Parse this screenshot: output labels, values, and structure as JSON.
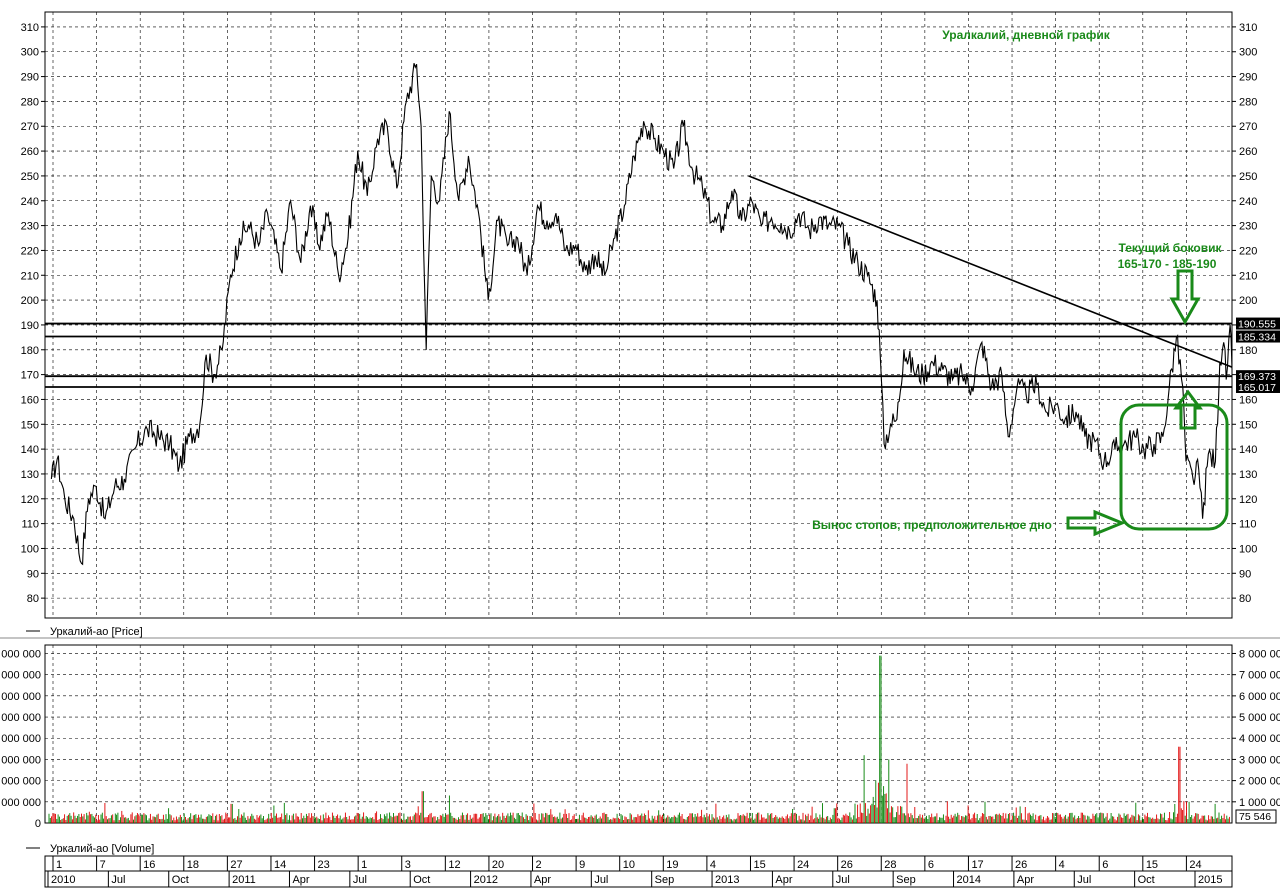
{
  "chart_data": [
    {
      "type": "line",
      "name": "price-panel",
      "title": "Уралкалий, дневной график",
      "legend": "Уркалий-ао [Price]",
      "ylim": [
        72,
        316
      ],
      "y_ticks": [
        80,
        90,
        100,
        110,
        120,
        130,
        140,
        150,
        160,
        170,
        180,
        190,
        200,
        210,
        220,
        230,
        240,
        250,
        260,
        270,
        280,
        290,
        300,
        310
      ],
      "x_range": [
        "2010-01-01",
        "2015-01-31"
      ],
      "series": [
        {
          "name": "Уркалий-ао [Price]",
          "points": [
            [
              "2010-01-11",
              128
            ],
            [
              "2010-01-20",
              136
            ],
            [
              "2010-02-01",
              120
            ],
            [
              "2010-02-15",
              112
            ],
            [
              "2010-02-27",
              94
            ],
            [
              "2010-03-10",
              120
            ],
            [
              "2010-03-22",
              125
            ],
            [
              "2010-04-05",
              112
            ],
            [
              "2010-04-20",
              125
            ],
            [
              "2010-05-05",
              128
            ],
            [
              "2010-05-25",
              142
            ],
            [
              "2010-06-10",
              148
            ],
            [
              "2010-06-28",
              145
            ],
            [
              "2010-07-15",
              142
            ],
            [
              "2010-07-30",
              133
            ],
            [
              "2010-08-15",
              145
            ],
            [
              "2010-08-31",
              150
            ],
            [
              "2010-09-10",
              178
            ],
            [
              "2010-09-22",
              170
            ],
            [
              "2010-10-05",
              180
            ],
            [
              "2010-10-18",
              210
            ],
            [
              "2010-11-01",
              225
            ],
            [
              "2010-11-15",
              230
            ],
            [
              "2010-12-01",
              222
            ],
            [
              "2010-12-15",
              235
            ],
            [
              "2011-01-05",
              212
            ],
            [
              "2011-01-20",
              240
            ],
            [
              "2011-02-05",
              215
            ],
            [
              "2011-02-20",
              238
            ],
            [
              "2011-03-05",
              222
            ],
            [
              "2011-03-20",
              235
            ],
            [
              "2011-04-05",
              210
            ],
            [
              "2011-04-20",
              225
            ],
            [
              "2011-05-05",
              260
            ],
            [
              "2011-05-20",
              242
            ],
            [
              "2011-06-05",
              265
            ],
            [
              "2011-06-20",
              270
            ],
            [
              "2011-07-05",
              245
            ],
            [
              "2011-07-20",
              280
            ],
            [
              "2011-08-05",
              295
            ],
            [
              "2011-08-12",
              270
            ],
            [
              "2011-08-20",
              180
            ],
            [
              "2011-08-28",
              250
            ],
            [
              "2011-09-10",
              240
            ],
            [
              "2011-09-25",
              276
            ],
            [
              "2011-10-10",
              240
            ],
            [
              "2011-10-25",
              258
            ],
            [
              "2011-11-10",
              235
            ],
            [
              "2011-11-25",
              200
            ],
            [
              "2011-12-10",
              232
            ],
            [
              "2011-12-25",
              222
            ],
            [
              "2012-01-10",
              225
            ],
            [
              "2012-01-25",
              210
            ],
            [
              "2012-02-10",
              238
            ],
            [
              "2012-02-25",
              232
            ],
            [
              "2012-03-10",
              235
            ],
            [
              "2012-03-25",
              220
            ],
            [
              "2012-04-10",
              222
            ],
            [
              "2012-04-25",
              212
            ],
            [
              "2012-05-10",
              218
            ],
            [
              "2012-05-25",
              210
            ],
            [
              "2012-06-10",
              225
            ],
            [
              "2012-06-25",
              238
            ],
            [
              "2012-07-10",
              258
            ],
            [
              "2012-07-25",
              272
            ],
            [
              "2012-08-10",
              265
            ],
            [
              "2012-08-25",
              260
            ],
            [
              "2012-09-10",
              253
            ],
            [
              "2012-09-25",
              270
            ],
            [
              "2012-10-10",
              252
            ],
            [
              "2012-10-25",
              245
            ],
            [
              "2012-11-10",
              232
            ],
            [
              "2012-11-25",
              230
            ],
            [
              "2012-12-10",
              244
            ],
            [
              "2012-12-25",
              232
            ],
            [
              "2013-01-10",
              240
            ],
            [
              "2013-01-25",
              230
            ],
            [
              "2013-02-10",
              233
            ],
            [
              "2013-02-25",
              231
            ],
            [
              "2013-03-10",
              228
            ],
            [
              "2013-03-25",
              235
            ],
            [
              "2013-04-10",
              228
            ],
            [
              "2013-04-25",
              233
            ],
            [
              "2013-05-10",
              230
            ],
            [
              "2013-05-25",
              230
            ],
            [
              "2013-06-10",
              222
            ],
            [
              "2013-06-25",
              215
            ],
            [
              "2013-07-10",
              210
            ],
            [
              "2013-07-25",
              200
            ],
            [
              "2013-07-30",
              178
            ],
            [
              "2013-08-05",
              142
            ],
            [
              "2013-08-15",
              150
            ],
            [
              "2013-08-25",
              152
            ],
            [
              "2013-09-05",
              180
            ],
            [
              "2013-09-20",
              172
            ],
            [
              "2013-10-05",
              170
            ],
            [
              "2013-10-20",
              175
            ],
            [
              "2013-11-05",
              172
            ],
            [
              "2013-11-20",
              168
            ],
            [
              "2013-12-05",
              170
            ],
            [
              "2013-12-20",
              165
            ],
            [
              "2014-01-05",
              183
            ],
            [
              "2014-01-20",
              165
            ],
            [
              "2014-02-05",
              170
            ],
            [
              "2014-02-15",
              145
            ],
            [
              "2014-03-01",
              165
            ],
            [
              "2014-03-15",
              162
            ],
            [
              "2014-04-01",
              166
            ],
            [
              "2014-04-15",
              155
            ],
            [
              "2014-05-01",
              158
            ],
            [
              "2014-05-15",
              152
            ],
            [
              "2014-06-01",
              155
            ],
            [
              "2014-06-15",
              145
            ],
            [
              "2014-07-01",
              143
            ],
            [
              "2014-07-15",
              135
            ],
            [
              "2014-08-01",
              140
            ],
            [
              "2014-08-15",
              142
            ],
            [
              "2014-09-01",
              145
            ],
            [
              "2014-09-15",
              140
            ],
            [
              "2014-10-01",
              142
            ],
            [
              "2014-10-15",
              145
            ],
            [
              "2014-10-25",
              165
            ],
            [
              "2014-11-05",
              185
            ],
            [
              "2014-11-15",
              165
            ],
            [
              "2014-11-20",
              135
            ],
            [
              "2014-12-01",
              128
            ],
            [
              "2014-12-10",
              132
            ],
            [
              "2014-12-16",
              112
            ],
            [
              "2014-12-25",
              138
            ],
            [
              "2015-01-05",
              135
            ],
            [
              "2015-01-12",
              175
            ],
            [
              "2015-01-18",
              183
            ],
            [
              "2015-01-22",
              168
            ],
            [
              "2015-01-28",
              190
            ],
            [
              "2015-01-31",
              172
            ]
          ]
        }
      ],
      "horizontal_levels": [
        190.555,
        185.334,
        169.373,
        165.017
      ],
      "price_labels": [
        "190.555",
        "185.334",
        "169.373",
        "165.017"
      ],
      "trendline": {
        "from": [
          "2013-01-05",
          250
        ],
        "to": [
          "2015-01-31",
          173
        ]
      },
      "annotations": {
        "sideways_title": "Текущий боковик",
        "sideways_range": "165-170 - 185-190",
        "stop_run": "Вынос стопов, предположительное дно"
      }
    },
    {
      "type": "bar",
      "name": "volume-panel",
      "legend": "Уркалий-ао [Volume]",
      "ylim": [
        0,
        8400000
      ],
      "y_ticks_left": [
        "0",
        "000 000",
        "000 000",
        "000 000",
        "000 000",
        "000 000",
        "000 000",
        "000 000",
        "000 000"
      ],
      "y_ticks_right": [
        "8 000 000",
        "7 000 000",
        "6 000 000",
        "5 000 000",
        "4 000 000",
        "3 000 000",
        "2 000 000",
        "1 000 000"
      ],
      "last_value_label": "75 546",
      "colors": {
        "up": "#008000",
        "down": "#e00000"
      },
      "peaks": [
        [
          "2010-10-20",
          900000
        ],
        [
          "2011-08-15",
          1500000
        ],
        [
          "2011-09-25",
          1300000
        ],
        [
          "2012-08-01",
          600000
        ],
        [
          "2013-05-20",
          700000
        ],
        [
          "2013-07-05",
          3200000
        ],
        [
          "2013-07-30",
          7900000
        ],
        [
          "2013-08-12",
          3000000
        ],
        [
          "2013-09-10",
          2800000
        ],
        [
          "2014-01-10",
          1000000
        ],
        [
          "2014-11-10",
          3600000
        ],
        [
          "2015-01-05",
          900000
        ]
      ]
    }
  ],
  "time_axis": {
    "top_labels": [
      "1",
      "7",
      "16",
      "18",
      "27",
      "14",
      "23",
      "1",
      "3",
      "12",
      "20",
      "2",
      "9",
      "10",
      "19",
      "4",
      "15",
      "24",
      "26",
      "28",
      "6",
      "17",
      "26",
      "4",
      "6",
      "15",
      "24"
    ],
    "bottom_labels": [
      "2010",
      "Jul",
      "Oct",
      "2011",
      "Apr",
      "Jul",
      "Oct",
      "2012",
      "Apr",
      "Jul",
      "Sep",
      "2013",
      "Apr",
      "Jul",
      "Sep",
      "2014",
      "Apr",
      "Jul",
      "Oct",
      "2015"
    ]
  },
  "colors": {
    "annotation": "#1a8a1a",
    "price_line": "#000000",
    "background": "#ffffff"
  }
}
